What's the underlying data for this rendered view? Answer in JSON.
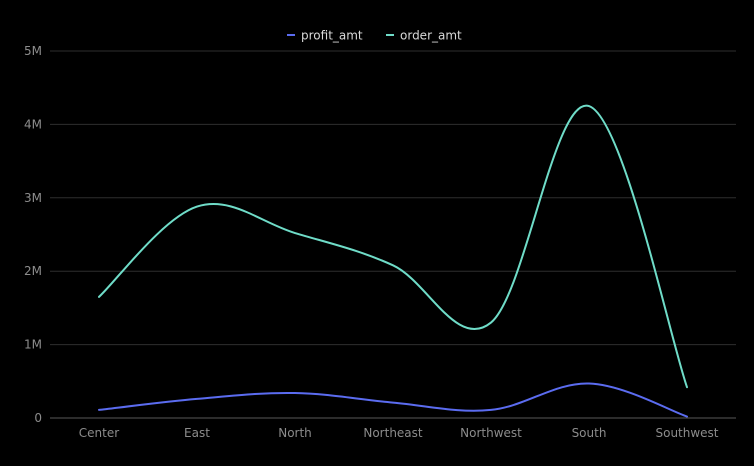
{
  "chart_data": {
    "type": "line",
    "categories": [
      "Center",
      "East",
      "North",
      "Northeast",
      "Northwest",
      "South",
      "Southwest"
    ],
    "series": [
      {
        "name": "profit_amt",
        "color": "#5b6cf0",
        "values": [
          110000,
          260000,
          340000,
          210000,
          110000,
          470000,
          20000
        ]
      },
      {
        "name": "order_amt",
        "color": "#6fdcc8",
        "values": [
          1650000,
          2880000,
          2520000,
          2080000,
          1300000,
          4250000,
          420000
        ]
      }
    ],
    "yticks": [
      {
        "value": 0,
        "label": "0"
      },
      {
        "value": 1000000,
        "label": "1M"
      },
      {
        "value": 2000000,
        "label": "2M"
      },
      {
        "value": 3000000,
        "label": "3M"
      },
      {
        "value": 4000000,
        "label": "4M"
      },
      {
        "value": 5000000,
        "label": "5M"
      }
    ],
    "ylim": [
      0,
      5000000
    ],
    "grid": true,
    "legend_position": "top-center",
    "smooth": true
  }
}
